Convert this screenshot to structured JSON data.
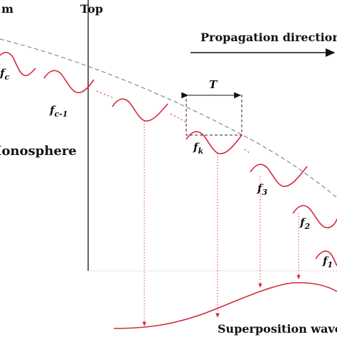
{
  "labels": {
    "bottom_fragment": "m",
    "top": "Top",
    "ionosphere": "Ionosphere",
    "propagation": "Propagation direction",
    "period": "T",
    "superposition": "Superposition wavef"
  },
  "waves": [
    {
      "base": "f",
      "sub": "c"
    },
    {
      "base": "f",
      "sub": "c-1"
    },
    {
      "base": "f",
      "sub": "k"
    },
    {
      "base": "f",
      "sub": "3"
    },
    {
      "base": "f",
      "sub": "2"
    },
    {
      "base": "f",
      "sub": "1"
    }
  ],
  "colors": {
    "wave": "#d4283b",
    "envelope": "#888888",
    "text": "#111111"
  }
}
